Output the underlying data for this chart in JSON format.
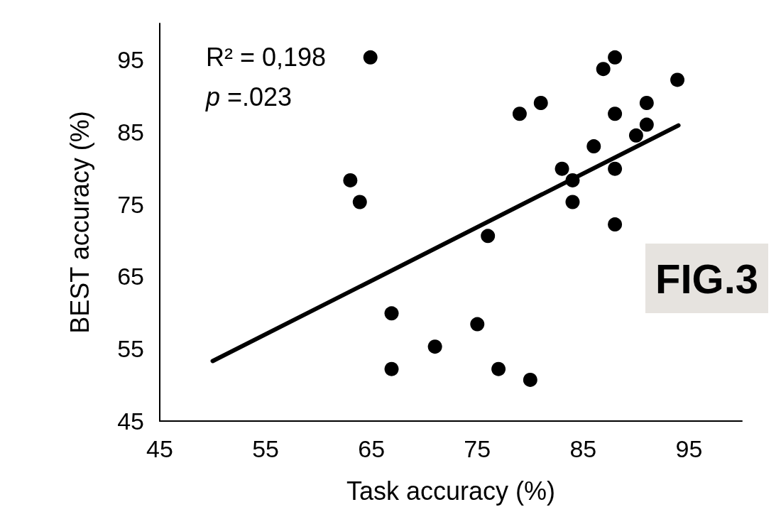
{
  "chart_data": {
    "type": "scatter",
    "xlabel": "Task accuracy (%)",
    "ylabel": "BEST accuracy (%)",
    "xlim": [
      45,
      100
    ],
    "xticks": [
      45,
      55,
      65,
      75,
      85,
      95
    ],
    "ylim": [
      45,
      100
    ],
    "yticks": [
      45,
      55,
      65,
      75,
      85,
      95
    ],
    "grid": false,
    "marker": "circle",
    "annotations": [
      "R² = 0,198",
      "p =.023",
      "FIG.3"
    ],
    "series": [
      {
        "color": "#000000",
        "x": [
          64.9,
          88.0,
          86.9,
          93.9,
          81.0,
          79.0,
          91.0,
          88.0,
          91.0,
          90.0,
          86.0,
          83.0,
          88.0,
          84.0,
          63.0,
          63.9,
          84.0,
          88.0,
          76.0,
          66.9,
          75.0,
          71.0,
          66.9,
          77.0,
          80.0
        ],
        "values": [
          95.3,
          95.3,
          93.7,
          92.2,
          89.0,
          87.5,
          89.0,
          87.5,
          86.0,
          84.5,
          83.0,
          79.9,
          79.9,
          78.3,
          78.3,
          75.3,
          75.3,
          72.2,
          70.6,
          59.9,
          58.4,
          55.3,
          52.2,
          52.2,
          50.7
        ]
      },
      {
        "type": "line",
        "color": "#000000",
        "marker": "none",
        "x": [
          50,
          94
        ],
        "values": [
          53.3,
          85.9
        ]
      }
    ]
  }
}
